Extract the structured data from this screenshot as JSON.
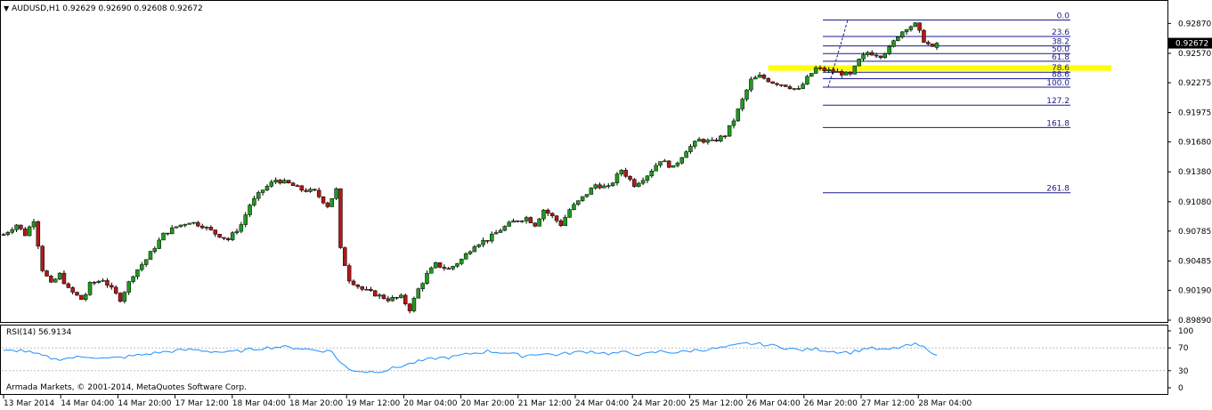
{
  "header": {
    "symbol_line": "AUDUSD,H1  0.92629 0.92690 0.92608 0.92672",
    "menu_icon": "triangle-down-icon"
  },
  "footer": {
    "copyright": "Armada Markets, © 2001-2014, MetaQuotes Software Corp."
  },
  "rsi": {
    "label": "RSI(14) 56.9134",
    "ticks": [
      "100",
      "70",
      "30",
      "0"
    ]
  },
  "colors": {
    "bull": "#1f9a1f",
    "bear": "#b01818",
    "fib": "#1a1a8c",
    "zone": "#ffff00",
    "rsi": "#1e90ff",
    "price_tag_bg": "#000000"
  },
  "chart_data": [
    {
      "type": "candlestick",
      "title": "AUDUSD,H1",
      "ohlc_current": {
        "open": 0.92629,
        "high": 0.9269,
        "low": 0.92608,
        "close": 0.92672
      },
      "price_axis_ticks": [
        "0.92870",
        "0.92570",
        "0.92275",
        "0.91975",
        "0.91680",
        "0.91380",
        "0.91080",
        "0.90785",
        "0.90485",
        "0.90190",
        "0.89890"
      ],
      "current_price_label": "0.92672",
      "ylim": [
        0.8989,
        0.9307
      ],
      "time_axis_labels": [
        "13 Mar 2014",
        "14 Mar 04:00",
        "14 Mar 20:00",
        "17 Mar 12:00",
        "18 Mar 04:00",
        "18 Mar 20:00",
        "19 Mar 12:00",
        "20 Mar 04:00",
        "20 Mar 20:00",
        "21 Mar 12:00",
        "24 Mar 04:00",
        "24 Mar 20:00",
        "25 Mar 12:00",
        "26 Mar 04:00",
        "26 Mar 20:00",
        "27 Mar 12:00",
        "28 Mar 04:00"
      ],
      "close_path": [
        [
          0,
          0.9075
        ],
        [
          3,
          0.9085
        ],
        [
          5,
          0.9075
        ],
        [
          7,
          0.909
        ],
        [
          9,
          0.904
        ],
        [
          11,
          0.9025
        ],
        [
          13,
          0.9035
        ],
        [
          15,
          0.902
        ],
        [
          18,
          0.901
        ],
        [
          19,
          0.9015
        ],
        [
          20,
          0.9025
        ],
        [
          23,
          0.903
        ],
        [
          27,
          0.901
        ],
        [
          30,
          0.9035
        ],
        [
          33,
          0.905
        ],
        [
          37,
          0.9075
        ],
        [
          40,
          0.9083
        ],
        [
          43,
          0.9088
        ],
        [
          46,
          0.9084
        ],
        [
          49,
          0.9076
        ],
        [
          52,
          0.907
        ],
        [
          55,
          0.9085
        ],
        [
          57,
          0.9105
        ],
        [
          60,
          0.912
        ],
        [
          63,
          0.913
        ],
        [
          66,
          0.9126
        ],
        [
          69,
          0.912
        ],
        [
          72,
          0.9118
        ],
        [
          75,
          0.9104
        ],
        [
          77,
          0.912
        ],
        [
          78,
          0.906
        ],
        [
          80,
          0.903
        ],
        [
          83,
          0.902
        ],
        [
          86,
          0.9015
        ],
        [
          89,
          0.901
        ],
        [
          92,
          0.9012
        ],
        [
          94,
          0.9
        ],
        [
          96,
          0.902
        ],
        [
          98,
          0.9035
        ],
        [
          100,
          0.9045
        ],
        [
          103,
          0.904
        ],
        [
          106,
          0.905
        ],
        [
          109,
          0.9065
        ],
        [
          112,
          0.907
        ],
        [
          115,
          0.908
        ],
        [
          118,
          0.9088
        ],
        [
          121,
          0.9092
        ],
        [
          123,
          0.9085
        ],
        [
          125,
          0.91
        ],
        [
          127,
          0.9093
        ],
        [
          129,
          0.9085
        ],
        [
          131,
          0.91
        ],
        [
          134,
          0.9112
        ],
        [
          137,
          0.9125
        ],
        [
          140,
          0.9122
        ],
        [
          143,
          0.914
        ],
        [
          146,
          0.9125
        ],
        [
          149,
          0.9135
        ],
        [
          152,
          0.915
        ],
        [
          155,
          0.9142
        ],
        [
          158,
          0.916
        ],
        [
          161,
          0.917
        ],
        [
          164,
          0.9168
        ],
        [
          167,
          0.9175
        ],
        [
          169,
          0.919
        ],
        [
          171,
          0.921
        ],
        [
          173,
          0.923
        ],
        [
          175,
          0.9234
        ],
        [
          178,
          0.9228
        ],
        [
          181,
          0.9225
        ],
        [
          184,
          0.922
        ],
        [
          186,
          0.9232
        ],
        [
          188,
          0.9242
        ],
        [
          190,
          0.924
        ],
        [
          193,
          0.9238
        ],
        [
          196,
          0.9235
        ],
        [
          198,
          0.925
        ],
        [
          200,
          0.9258
        ],
        [
          203,
          0.9255
        ],
        [
          205,
          0.9262
        ],
        [
          207,
          0.9275
        ],
        [
          209,
          0.9283
        ],
        [
          211,
          0.9286
        ],
        [
          213,
          0.927
        ],
        [
          215,
          0.9262
        ],
        [
          216,
          0.9267
        ]
      ],
      "fibonacci": {
        "levels": [
          {
            "label": "0.0",
            "price": 0.92905
          },
          {
            "label": "23.6",
            "price": 0.9274
          },
          {
            "label": "38.2",
            "price": 0.92645
          },
          {
            "label": "50.0",
            "price": 0.92568
          },
          {
            "label": "61.8",
            "price": 0.9249
          },
          {
            "label": "78.6",
            "price": 0.9238
          },
          {
            "label": "88.6",
            "price": 0.92315
          },
          {
            "label": "100.0",
            "price": 0.9223
          },
          {
            "label": "127.2",
            "price": 0.9205
          },
          {
            "label": "161.8",
            "price": 0.91825
          },
          {
            "label": "261.8",
            "price": 0.9117
          }
        ]
      },
      "highlight_zone": {
        "price_low": 0.92395,
        "price_high": 0.9245
      }
    },
    {
      "type": "line",
      "title": "RSI(14)",
      "last_value": 56.9134,
      "ylim": [
        0,
        100
      ],
      "levels": [
        30,
        70
      ],
      "values": [
        [
          0,
          64
        ],
        [
          4,
          66
        ],
        [
          8,
          58
        ],
        [
          12,
          50
        ],
        [
          16,
          53
        ],
        [
          20,
          55
        ],
        [
          24,
          51
        ],
        [
          28,
          54
        ],
        [
          32,
          58
        ],
        [
          36,
          62
        ],
        [
          40,
          65
        ],
        [
          44,
          67
        ],
        [
          48,
          64
        ],
        [
          52,
          62
        ],
        [
          56,
          66
        ],
        [
          60,
          70
        ],
        [
          64,
          72
        ],
        [
          68,
          70
        ],
        [
          72,
          66
        ],
        [
          76,
          64
        ],
        [
          78,
          44
        ],
        [
          80,
          32
        ],
        [
          84,
          28
        ],
        [
          88,
          30
        ],
        [
          92,
          38
        ],
        [
          96,
          46
        ],
        [
          100,
          52
        ],
        [
          104,
          54
        ],
        [
          108,
          60
        ],
        [
          112,
          64
        ],
        [
          116,
          62
        ],
        [
          120,
          56
        ],
        [
          124,
          60
        ],
        [
          128,
          58
        ],
        [
          132,
          62
        ],
        [
          136,
          64
        ],
        [
          140,
          60
        ],
        [
          144,
          62
        ],
        [
          148,
          58
        ],
        [
          152,
          64
        ],
        [
          156,
          62
        ],
        [
          160,
          66
        ],
        [
          164,
          68
        ],
        [
          168,
          72
        ],
        [
          172,
          78
        ],
        [
          176,
          76
        ],
        [
          180,
          72
        ],
        [
          184,
          66
        ],
        [
          188,
          68
        ],
        [
          192,
          64
        ],
        [
          196,
          62
        ],
        [
          200,
          70
        ],
        [
          204,
          66
        ],
        [
          208,
          72
        ],
        [
          211,
          76
        ],
        [
          214,
          68
        ],
        [
          216,
          57
        ]
      ]
    }
  ]
}
